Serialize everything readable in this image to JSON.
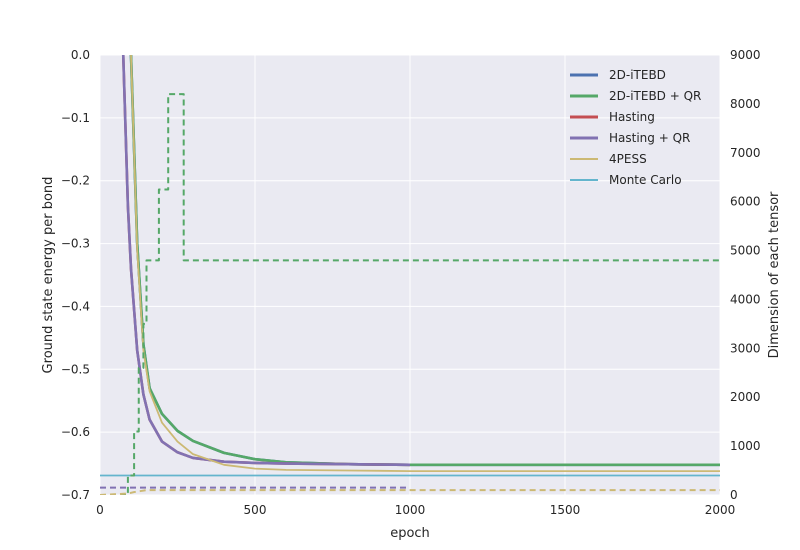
{
  "chart_data": {
    "type": "line",
    "xlabel": "epoch",
    "ylabel": "Ground state energy per bond",
    "ylabel_right": "Dimension of each tensor",
    "xlim": [
      0,
      2000
    ],
    "ylim": [
      -0.7,
      0.0
    ],
    "ylim_right": [
      0,
      9000
    ],
    "xticks": [
      "0",
      "500",
      "1000",
      "1500",
      "2000"
    ],
    "yticks": [
      "0.0",
      "−0.1",
      "−0.2",
      "−0.3",
      "−0.4",
      "−0.5",
      "−0.6",
      "−0.7"
    ],
    "yticks_right": [
      "0",
      "1000",
      "2000",
      "3000",
      "4000",
      "5000",
      "6000",
      "7000",
      "8000",
      "9000"
    ],
    "grid": true,
    "legend_position": "top-right",
    "series": [
      {
        "name": "2D-iTEBD",
        "color": "#4c72b0",
        "axis": "left",
        "style": "solid",
        "x": [
          100,
          120,
          140,
          160,
          200,
          250,
          300,
          400,
          500,
          600,
          800,
          1000,
          1500,
          2000
        ],
        "y": [
          0.0,
          -0.3,
          -0.46,
          -0.53,
          -0.571,
          -0.598,
          -0.614,
          -0.633,
          -0.643,
          -0.648,
          -0.651,
          -0.652,
          -0.652,
          -0.652
        ]
      },
      {
        "name": "2D-iTEBD + QR",
        "color": "#55a868",
        "axis": "left",
        "style": "solid",
        "x": [
          100,
          120,
          140,
          160,
          200,
          250,
          300,
          400,
          500,
          600,
          800,
          1000,
          1500,
          2000
        ],
        "y": [
          0.0,
          -0.3,
          -0.46,
          -0.53,
          -0.571,
          -0.598,
          -0.614,
          -0.633,
          -0.643,
          -0.648,
          -0.651,
          -0.652,
          -0.652,
          -0.652
        ]
      },
      {
        "name": "Hasting",
        "color": "#c44e52",
        "axis": "left",
        "style": "solid",
        "x": [
          75,
          90,
          100,
          120,
          140,
          160,
          200,
          250,
          300,
          400,
          500,
          600,
          800,
          1000
        ],
        "y": [
          0.0,
          -0.24,
          -0.34,
          -0.47,
          -0.54,
          -0.58,
          -0.615,
          -0.632,
          -0.641,
          -0.647,
          -0.649,
          -0.65,
          -0.651,
          -0.652
        ]
      },
      {
        "name": "Hasting + QR",
        "color": "#8172b2",
        "axis": "left",
        "style": "solid",
        "x": [
          75,
          90,
          100,
          120,
          140,
          160,
          200,
          250,
          300,
          400,
          500,
          600,
          800,
          1000
        ],
        "y": [
          0.0,
          -0.24,
          -0.34,
          -0.47,
          -0.54,
          -0.58,
          -0.615,
          -0.632,
          -0.641,
          -0.647,
          -0.649,
          -0.65,
          -0.651,
          -0.652
        ]
      },
      {
        "name": "4PESS",
        "color": "#ccb974",
        "axis": "left",
        "style": "solid",
        "x": [
          100,
          120,
          140,
          160,
          200,
          250,
          300,
          400,
          500,
          600,
          800,
          1000,
          1500,
          2000
        ],
        "y": [
          0.0,
          -0.31,
          -0.47,
          -0.535,
          -0.585,
          -0.615,
          -0.635,
          -0.652,
          -0.658,
          -0.66,
          -0.661,
          -0.662,
          -0.662,
          -0.662
        ]
      },
      {
        "name": "Monte Carlo",
        "color": "#64b5cd",
        "axis": "left",
        "style": "solid",
        "x": [
          0,
          2000
        ],
        "y": [
          -0.669,
          -0.669
        ]
      },
      {
        "name": "",
        "color": "#55a868",
        "axis": "right",
        "style": "dashed-step",
        "x": [
          0,
          90,
          90,
          110,
          110,
          125,
          125,
          140,
          140,
          150,
          150,
          190,
          190,
          220,
          220,
          270,
          270,
          2000
        ],
        "y": [
          0,
          0,
          400,
          400,
          1300,
          1300,
          2600,
          2600,
          3500,
          3500,
          4800,
          4800,
          6250,
          6250,
          8200,
          8200,
          4800,
          4800
        ]
      },
      {
        "name": "",
        "color": "#ccb974",
        "axis": "right",
        "style": "dashed",
        "x": [
          0,
          90,
          110,
          150,
          200,
          2000
        ],
        "y": [
          0,
          30,
          60,
          100,
          100,
          100
        ]
      },
      {
        "name": "",
        "color": "#8172b2",
        "axis": "right",
        "style": "dashed",
        "x": [
          0,
          1000
        ],
        "y": [
          150,
          150
        ]
      }
    ]
  }
}
